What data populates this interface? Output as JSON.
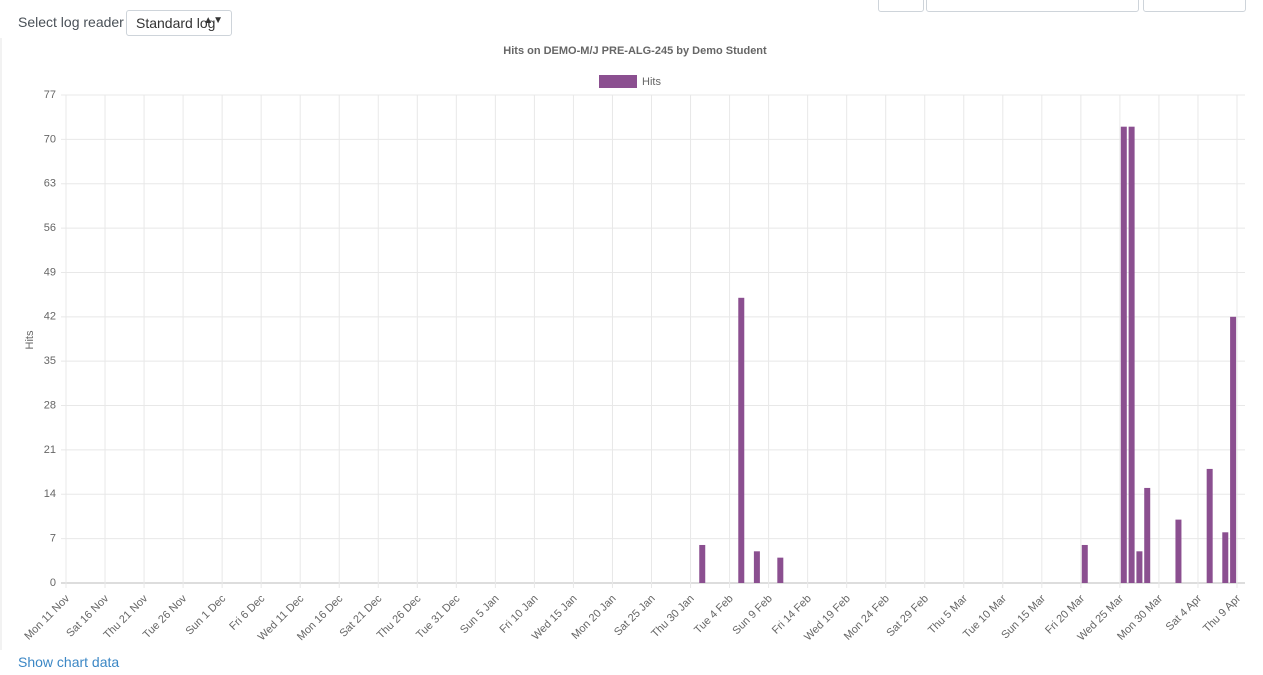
{
  "ui": {
    "log_reader_label": "Select log reader",
    "log_reader_value": "Standard log",
    "show_chart_data": "Show chart data"
  },
  "chart_data": {
    "type": "bar",
    "title": "Hits on DEMO-M/J PRE-ALG-245 by Demo Student",
    "y_label": "Hits",
    "grid": true,
    "legend": "top",
    "categories": [
      "Mon 11 Nov",
      null,
      null,
      null,
      null,
      "Sat 16 Nov",
      null,
      null,
      null,
      null,
      "Thu 21 Nov",
      null,
      null,
      null,
      null,
      "Tue 26 Nov",
      null,
      null,
      null,
      null,
      "Sun 1 Dec",
      null,
      null,
      null,
      null,
      "Fri 6 Dec",
      null,
      null,
      null,
      null,
      "Wed 11 Dec",
      null,
      null,
      null,
      null,
      "Mon 16 Dec",
      null,
      null,
      null,
      null,
      "Sat 21 Dec",
      null,
      null,
      null,
      null,
      "Thu 26 Dec",
      null,
      null,
      null,
      null,
      "Tue 31 Dec",
      null,
      null,
      null,
      null,
      "Sun 5 Jan",
      null,
      null,
      null,
      null,
      "Fri 10 Jan",
      null,
      null,
      null,
      null,
      "Wed 15 Jan",
      null,
      null,
      null,
      null,
      "Mon 20 Jan",
      null,
      null,
      null,
      null,
      "Sat 25 Jan",
      null,
      null,
      null,
      null,
      "Thu 30 Jan",
      null,
      null,
      null,
      null,
      "Tue 4 Feb",
      null,
      null,
      null,
      null,
      "Sun 9 Feb",
      null,
      null,
      null,
      null,
      "Fri 14 Feb",
      null,
      null,
      null,
      null,
      "Wed 19 Feb",
      null,
      null,
      null,
      null,
      "Mon 24 Feb",
      null,
      null,
      null,
      null,
      "Sat 29 Feb",
      null,
      null,
      null,
      null,
      "Thu 5 Mar",
      null,
      null,
      null,
      null,
      "Tue 10 Mar",
      null,
      null,
      null,
      null,
      "Sun 15 Mar",
      null,
      null,
      null,
      null,
      "Fri 20 Mar",
      null,
      null,
      null,
      null,
      "Wed 25 Mar",
      null,
      null,
      null,
      null,
      "Mon 30 Mar",
      null,
      null,
      null,
      null,
      "Sat 4 Apr",
      null,
      null,
      null,
      null,
      "Thu 9 Apr"
    ],
    "series": [
      {
        "name": "Hits",
        "color": "#8b4f90",
        "values": [
          0,
          0,
          0,
          0,
          0,
          0,
          0,
          0,
          0,
          0,
          0,
          0,
          0,
          0,
          0,
          0,
          0,
          0,
          0,
          0,
          0,
          0,
          0,
          0,
          0,
          0,
          0,
          0,
          0,
          0,
          0,
          0,
          0,
          0,
          0,
          0,
          0,
          0,
          0,
          0,
          0,
          0,
          0,
          0,
          0,
          0,
          0,
          0,
          0,
          0,
          0,
          0,
          0,
          0,
          0,
          0,
          0,
          0,
          0,
          0,
          0,
          0,
          0,
          0,
          0,
          0,
          0,
          0,
          0,
          0,
          0,
          0,
          0,
          0,
          0,
          0,
          0,
          0,
          0,
          0,
          0,
          6,
          0,
          0,
          0,
          0,
          45,
          0,
          5,
          0,
          0,
          4,
          0,
          0,
          0,
          0,
          0,
          0,
          0,
          0,
          0,
          0,
          0,
          0,
          0,
          0,
          0,
          0,
          0,
          0,
          0,
          0,
          0,
          0,
          0,
          0,
          0,
          0,
          0,
          0,
          0,
          0,
          0,
          0,
          0,
          0,
          0,
          0,
          0,
          0,
          6,
          0,
          0,
          0,
          0,
          72,
          72,
          5,
          15,
          0,
          0,
          0,
          10,
          0,
          0,
          0,
          18,
          0,
          8,
          42,
          0
        ]
      }
    ],
    "ylim": [
      0,
      77
    ],
    "yticks": [
      0,
      7,
      14,
      21,
      28,
      35,
      42,
      49,
      56,
      63,
      70,
      77
    ]
  }
}
